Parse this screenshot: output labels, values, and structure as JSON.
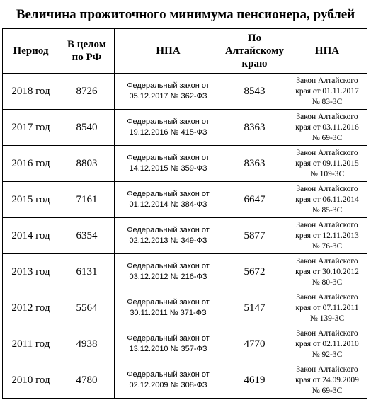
{
  "title": "Величина прожиточного минимума пенсионера, рублей",
  "headers": {
    "period": "Период",
    "rf": [
      "В целом",
      "по РФ"
    ],
    "npa": "НПА",
    "altai": [
      "По",
      "Алтайскому",
      "краю"
    ],
    "npa2": "НПА"
  },
  "rows": [
    {
      "period": "2018 год",
      "rf": "8726",
      "npa": [
        "Федеральный закон от",
        "05.12.2017 № 362-ФЗ"
      ],
      "altai": "8543",
      "npa2": [
        "Закон Алтайского",
        "края от 01.11.2017",
        "№ 83-ЗС"
      ]
    },
    {
      "period": "2017 год",
      "rf": "8540",
      "npa": [
        "Федеральный закон от",
        "19.12.2016 № 415-ФЗ"
      ],
      "altai": "8363",
      "npa2": [
        "Закон Алтайского",
        "края от 03.11.2016",
        "№ 69-ЗС"
      ]
    },
    {
      "period": "2016 год",
      "rf": "8803",
      "npa": [
        "Федеральный закон от",
        "14.12.2015 № 359-ФЗ"
      ],
      "altai": "8363",
      "npa2": [
        "Закон Алтайского",
        "края от 09.11.2015",
        "№ 109-ЗС"
      ]
    },
    {
      "period": "2015 год",
      "rf": "7161",
      "npa": [
        "Федеральный закон от",
        "01.12.2014 № 384-ФЗ"
      ],
      "altai": "6647",
      "npa2": [
        "Закон Алтайского",
        "края от 06.11.2014",
        "№ 85-ЗС"
      ]
    },
    {
      "period": "2014 год",
      "rf": "6354",
      "npa": [
        "Федеральный закон от",
        "02.12.2013 № 349-ФЗ"
      ],
      "altai": "5877",
      "npa2": [
        "Закон Алтайского",
        "края от 12.11.2013",
        "№ 76-ЗС"
      ]
    },
    {
      "period": "2013 год",
      "rf": "6131",
      "npa": [
        "Федеральный закон от",
        "03.12.2012 № 216-ФЗ"
      ],
      "altai": "5672",
      "npa2": [
        "Закон Алтайского",
        "края от 30.10.2012",
        "№ 80-ЗС"
      ]
    },
    {
      "period": "2012 год",
      "rf": "5564",
      "npa": [
        "Федеральный закон от",
        "30.11.2011 № 371-ФЗ"
      ],
      "altai": "5147",
      "npa2": [
        "Закон Алтайского",
        "края от 07.11.2011",
        "№ 139-ЗС"
      ]
    },
    {
      "period": "2011 год",
      "rf": "4938",
      "npa": [
        "Федеральный закон от",
        "13.12.2010 № 357-ФЗ"
      ],
      "altai": "4770",
      "npa2": [
        "Закон Алтайского",
        "края от 02.11.2010",
        "№ 92-ЗС"
      ]
    },
    {
      "period": "2010 год",
      "rf": "4780",
      "npa": [
        "Федеральный закон от",
        "02.12.2009 № 308-ФЗ"
      ],
      "altai": "4619",
      "npa2": [
        "Закон Алтайского",
        "края от 24.09.2009",
        "№ 69-ЗС"
      ]
    }
  ]
}
